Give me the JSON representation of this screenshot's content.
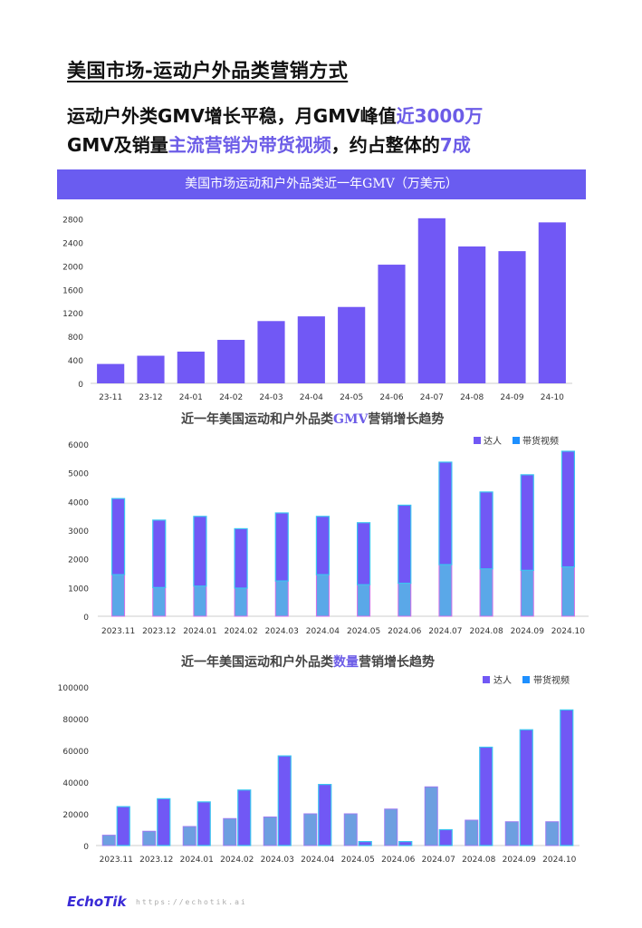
{
  "page": {
    "title": "美国市场-运动户外品类营销方式",
    "headline_line1_a": "运动户外类GMV增长平稳，月GMV峰值",
    "headline_line1_b": "近3000万",
    "headline_line2_a": "GMV及销量",
    "headline_line2_b": "主流营销为带货视频",
    "headline_line2_c": "，约占整体的",
    "headline_line2_d": "7成"
  },
  "colors": {
    "accent": "#6a5cf0",
    "bar": "#7158f5",
    "bar_outline": "#3bc4f0",
    "kol": "#7158f5",
    "video": "#1e90ff"
  },
  "chart_data": [
    {
      "type": "bar",
      "title": "美国市场运动和户外品类近一年GMV（万美元）",
      "categories": [
        "23-11",
        "23-12",
        "24-01",
        "24-02",
        "24-03",
        "24-04",
        "24-05",
        "24-06",
        "24-07",
        "24-08",
        "24-09",
        "24-10"
      ],
      "values": [
        330,
        470,
        540,
        740,
        1060,
        1140,
        1300,
        2020,
        2810,
        2330,
        2250,
        2740
      ],
      "yticks": [
        0,
        400,
        800,
        1200,
        1600,
        2000,
        2400,
        2800
      ],
      "ylim": [
        0,
        2900
      ],
      "grid": false
    },
    {
      "type": "bar",
      "title_a": "近一年美国运动和户外品类",
      "title_b": "GMV",
      "title_c": "营销增长趋势",
      "stacked": true,
      "categories": [
        "2023.11",
        "2023.12",
        "2024.01",
        "2024.02",
        "2024.03",
        "2024.04",
        "2024.05",
        "2024.06",
        "2024.07",
        "2024.08",
        "2024.09",
        "2024.10"
      ],
      "series": [
        {
          "name": "达人",
          "values": [
            1450,
            1000,
            1050,
            980,
            1230,
            1450,
            1100,
            1150,
            1800,
            1650,
            1600,
            1720
          ]
        },
        {
          "name": "带货视频",
          "values": [
            2650,
            2350,
            2430,
            2070,
            2370,
            2030,
            2160,
            2720,
            3570,
            2680,
            3330,
            4030
          ]
        }
      ],
      "yticks": [
        0,
        1000,
        2000,
        3000,
        4000,
        5000,
        6000
      ],
      "ylim": [
        0,
        6000
      ],
      "legend": "top-right"
    },
    {
      "type": "bar",
      "title_a": "近一年美国运动和户外品类",
      "title_b": "数量",
      "title_c": "营销增长趋势",
      "stacked": false,
      "categories": [
        "2023.11",
        "2023.12",
        "2024.01",
        "2024.02",
        "2024.03",
        "2024.04",
        "2024.05",
        "2024.06",
        "2024.07",
        "2024.08",
        "2024.09",
        "2024.10"
      ],
      "series": [
        {
          "name": "达人",
          "values": [
            6500,
            9000,
            12000,
            17000,
            18000,
            20000,
            20000,
            23000,
            37000,
            16000,
            15000,
            15000
          ]
        },
        {
          "name": "带货视频",
          "values": [
            24500,
            29500,
            27500,
            35000,
            56500,
            38500,
            2500,
            2500,
            10000,
            62000,
            73000,
            85500
          ]
        }
      ],
      "yticks": [
        0,
        20000,
        40000,
        60000,
        80000,
        100000
      ],
      "ylim": [
        0,
        100000
      ],
      "legend": "top-right"
    }
  ],
  "footer": {
    "logo": "EchoTik",
    "url": "https://echotik.ai"
  }
}
